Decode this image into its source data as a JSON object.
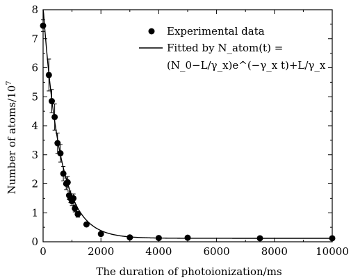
{
  "chart_data": {
    "type": "scatter",
    "xlabel": "The duration of photoionization/ms",
    "ylabel": "Number of atoms/10",
    "ylabel_exponent": "7",
    "xlim": [
      0,
      10000
    ],
    "ylim": [
      0,
      8
    ],
    "x_ticks": [
      "0",
      "2000",
      "4000",
      "6000",
      "8000",
      "10000"
    ],
    "y_ticks": [
      "0",
      "1",
      "2",
      "3",
      "4",
      "5",
      "6",
      "7",
      "8"
    ],
    "legend": {
      "position": "top-right",
      "marker_label": "Experimental data",
      "line_label_1": "Fitted by N_atom(t) =",
      "line_label_2": "(N_0−L/γ_x)e^(−γ_x t)+L/γ_x"
    },
    "series": [
      {
        "kind": "markers",
        "x": [
          0,
          200,
          300,
          400,
          500,
          600,
          700,
          800,
          850,
          900,
          950,
          1000,
          1050,
          1100,
          1200,
          1500,
          2000,
          3000,
          4000,
          5000,
          7500,
          10000
        ],
        "y": [
          7.45,
          5.75,
          4.85,
          4.3,
          3.4,
          3.05,
          2.35,
          2.0,
          2.05,
          1.6,
          1.5,
          1.4,
          1.5,
          1.15,
          0.95,
          0.6,
          0.27,
          0.15,
          0.13,
          0.14,
          0.12,
          0.12
        ],
        "err": [
          0.2,
          0.55,
          0.4,
          0.45,
          0.35,
          0.3,
          0.25,
          0.2,
          0.2,
          0.15,
          0.15,
          0.15,
          0.15,
          0.12,
          0.1,
          0.06,
          0.04,
          0.03,
          0.03,
          0.03,
          0.02,
          0.02
        ]
      },
      {
        "kind": "fit-line",
        "N0": 8.1,
        "gamma_x": 0.0017,
        "asymptote": 0.12
      }
    ]
  }
}
